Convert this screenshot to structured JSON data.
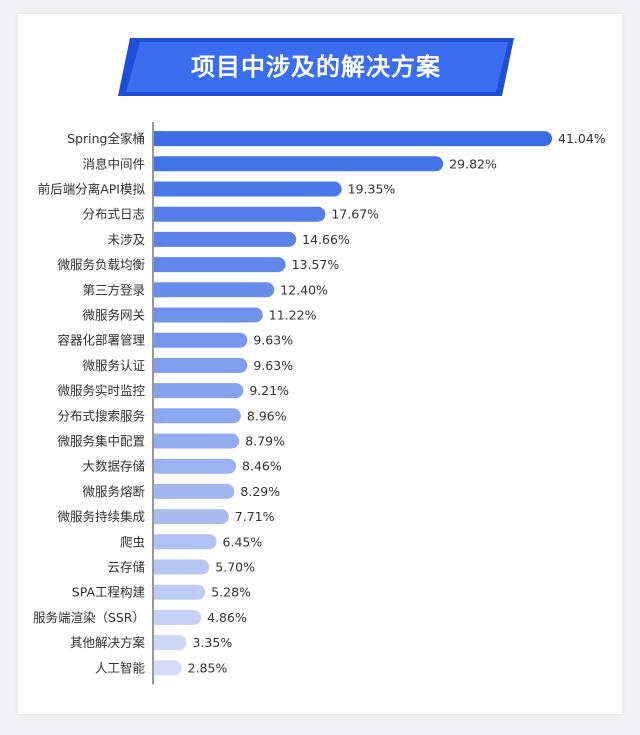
{
  "title": "项目中涉及的解决方案",
  "colors": {
    "background": "#f2f2f4",
    "card": "#ffffff",
    "banner": "#2f63e8",
    "bar_top": "#3d6de6",
    "bar_bottom": "#d4dcf7",
    "axis": "#333333",
    "text": "#333333"
  },
  "chart_data": {
    "type": "bar",
    "orientation": "horizontal",
    "title": "项目中涉及的解决方案",
    "categories": [
      "Spring全家桶",
      "消息中间件",
      "前后端分离API模拟",
      "分布式日志",
      "未涉及",
      "微服务负载均衡",
      "第三方登录",
      "微服务网关",
      "容器化部署管理",
      "微服务认证",
      "微服务实时监控",
      "分布式搜索服务",
      "微服务集中配置",
      "大数据存储",
      "微服务熔断",
      "微服务持续集成",
      "爬虫",
      "云存储",
      "SPA工程构建",
      "服务端渲染（SSR）",
      "其他解决方案",
      "人工智能"
    ],
    "values": [
      41.04,
      29.82,
      19.35,
      17.67,
      14.66,
      13.57,
      12.4,
      11.22,
      9.63,
      9.63,
      9.21,
      8.96,
      8.79,
      8.46,
      8.29,
      7.71,
      6.45,
      5.7,
      5.28,
      4.86,
      3.35,
      2.85
    ],
    "value_labels": [
      "41.04%",
      "29.82%",
      "19.35%",
      "17.67%",
      "14.66%",
      "13.57%",
      "12.40%",
      "11.22%",
      "9.63%",
      "9.63%",
      "9.21%",
      "8.96%",
      "8.79%",
      "8.46%",
      "8.29%",
      "7.71%",
      "6.45%",
      "5.70%",
      "5.28%",
      "4.86%",
      "3.35%",
      "2.85%"
    ],
    "unit": "%",
    "xlim": [
      0,
      41.04
    ],
    "grid": false,
    "legend": "none"
  }
}
